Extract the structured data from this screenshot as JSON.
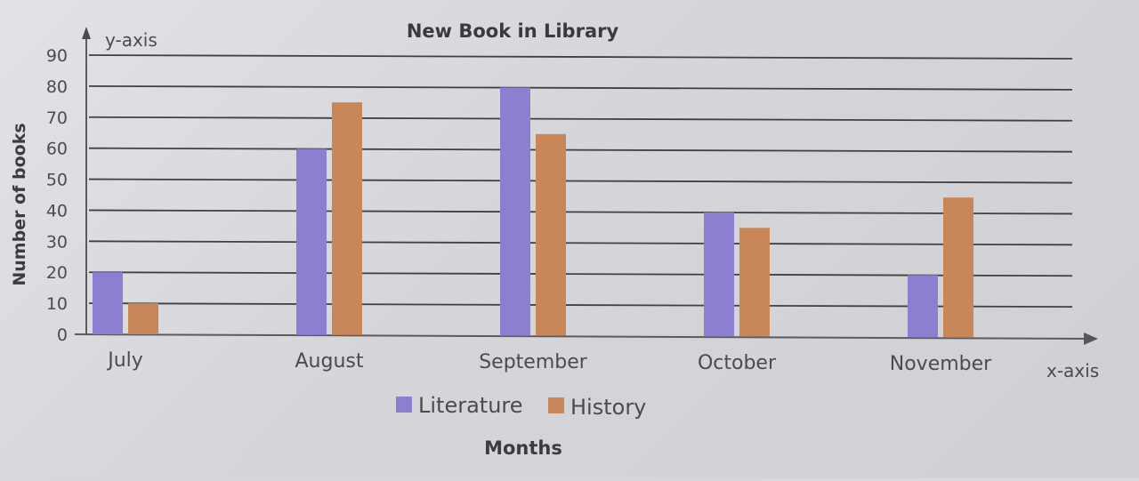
{
  "colors": {
    "literature": "#8a7fd0",
    "history": "#c98658"
  },
  "chart_data": {
    "type": "bar",
    "title": "New Book in Library",
    "xlabel": "Months",
    "ylabel": "Number of books",
    "x_axis_name": "x-axis",
    "y_axis_name": "y-axis",
    "categories": [
      "July",
      "August",
      "September",
      "October",
      "November"
    ],
    "series": [
      {
        "name": "Literature",
        "values": [
          20,
          60,
          80,
          40,
          20
        ]
      },
      {
        "name": "History",
        "values": [
          10,
          75,
          65,
          35,
          45
        ]
      }
    ],
    "ylim": [
      0,
      90
    ],
    "yticks": [
      0,
      10,
      20,
      30,
      40,
      50,
      60,
      70,
      80,
      90
    ],
    "grid": true,
    "legend_position": "bottom"
  }
}
